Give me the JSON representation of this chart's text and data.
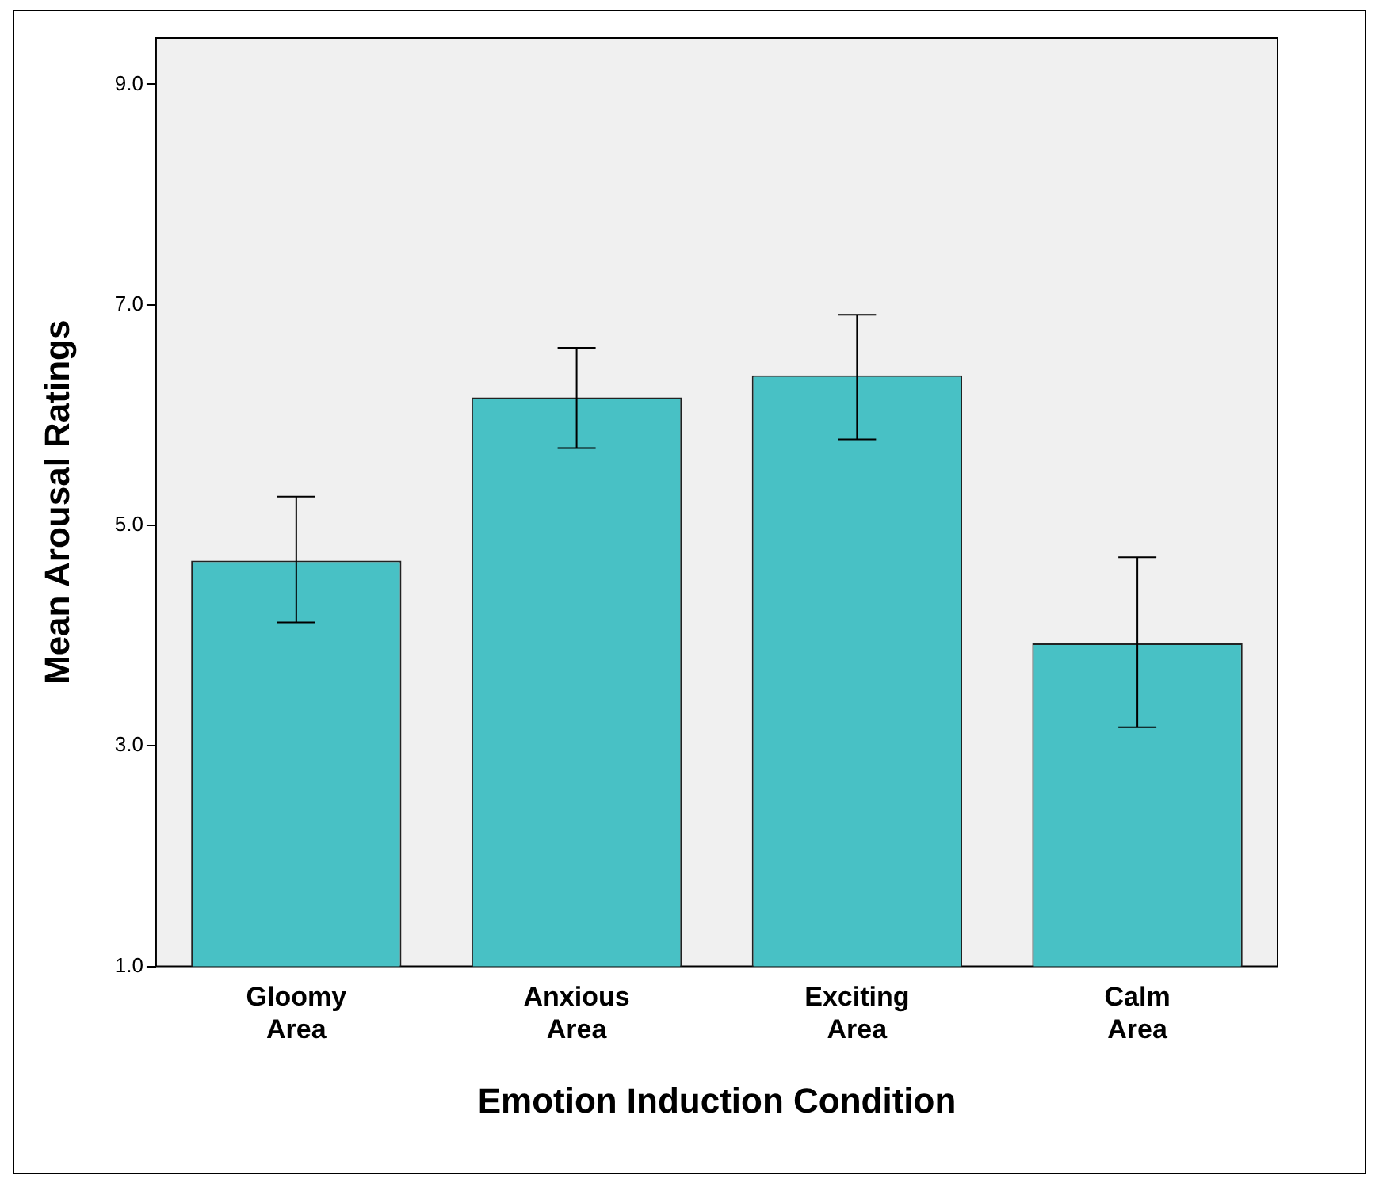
{
  "chart_data": {
    "type": "bar",
    "xlabel": "Emotion Induction Condition",
    "ylabel": "Mean Arousal Ratings",
    "categories": [
      "Gloomy Area",
      "Anxious Area",
      "Exciting Area",
      "Calm Area"
    ],
    "values": [
      4.68,
      6.16,
      6.36,
      3.93
    ],
    "color": "#48c1c5",
    "errors": [
      [
        4.12,
        5.26
      ],
      [
        5.7,
        6.61
      ],
      [
        5.78,
        6.91
      ],
      [
        3.17,
        4.71
      ]
    ],
    "ylim": [
      1,
      9.42
    ],
    "yticks": [
      {
        "value": 1,
        "label": "1.0"
      },
      {
        "value": 3,
        "label": "3.0"
      },
      {
        "value": 5,
        "label": "5.0"
      },
      {
        "value": 7,
        "label": "7.0"
      },
      {
        "value": 9,
        "label": "9.0"
      }
    ],
    "grid": false,
    "legend": false
  }
}
